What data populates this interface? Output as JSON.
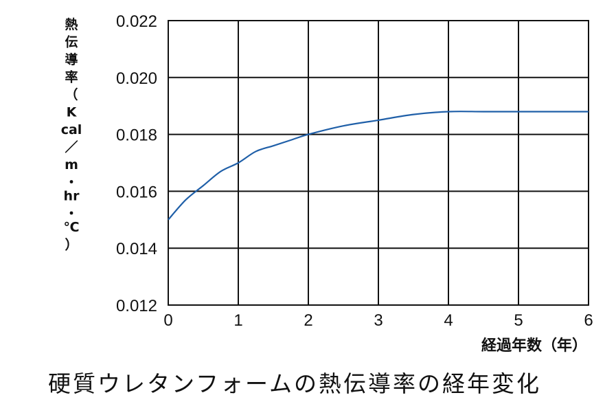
{
  "chart_data": {
    "type": "line",
    "title": "",
    "ylabel": "熱伝導率（Kcal／m・hr・℃）",
    "ylabel_chars": [
      "熱",
      "伝",
      "導",
      "率",
      "（",
      "K",
      "cal",
      "／",
      "m",
      "・",
      "hr",
      "・",
      "℃",
      "）"
    ],
    "xlabel": "経過年数（年）",
    "xlim": [
      0,
      6
    ],
    "ylim": [
      0.012,
      0.022
    ],
    "x_ticks": [
      "0",
      "1",
      "2",
      "3",
      "4",
      "5",
      "6"
    ],
    "y_ticks": [
      "0.012",
      "0.014",
      "0.016",
      "0.018",
      "0.020",
      "0.022"
    ],
    "grid": true,
    "series": [
      {
        "color": "#1f5fa8",
        "x": [
          0,
          0.25,
          0.5,
          0.75,
          1.0,
          1.25,
          1.5,
          1.75,
          2.0,
          2.5,
          3.0,
          3.5,
          4.0,
          4.5,
          5.0,
          5.5,
          6.0
        ],
        "y": [
          0.015,
          0.0157,
          0.0162,
          0.0167,
          0.017,
          0.0174,
          0.0176,
          0.0178,
          0.018,
          0.0183,
          0.0185,
          0.0187,
          0.0188,
          0.0188,
          0.0188,
          0.0188,
          0.0188
        ]
      }
    ]
  },
  "caption": "硬質ウレタンフォームの熱伝導率の経年変化"
}
